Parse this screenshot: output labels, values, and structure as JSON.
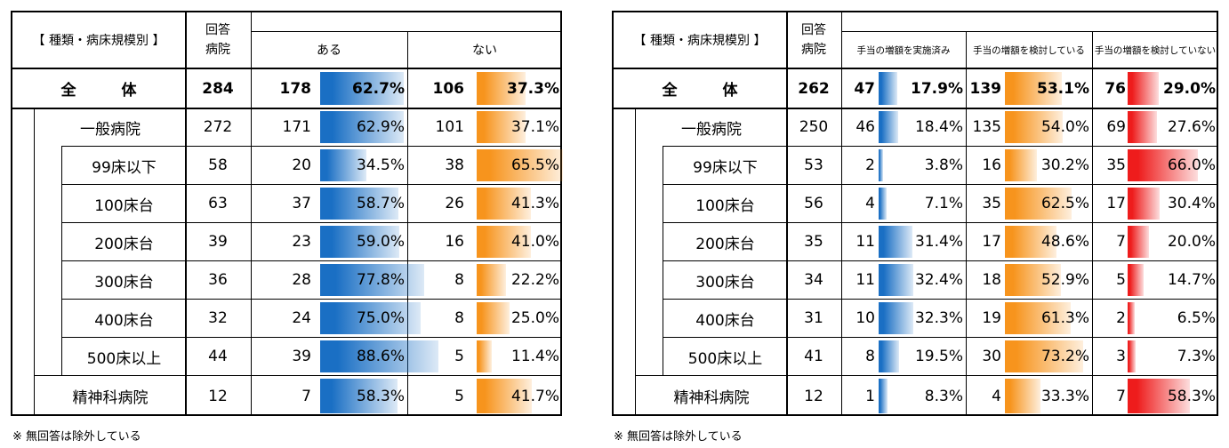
{
  "note": "※ 無回答は除外している",
  "colors": {
    "blue": "#1a6fc4",
    "orange": "#f7941d",
    "red": "#ee1c1c"
  },
  "tables": [
    {
      "category_header": "【 種類・病床規模別 】",
      "resp_header": [
        "回答",
        "病院"
      ],
      "col_headers": [
        "ある",
        "ない"
      ],
      "rows": [
        {
          "label": "全　　　体",
          "n": "284",
          "cols": [
            {
              "count": "178",
              "pct": 62.7,
              "text": "62.7%"
            },
            {
              "count": "106",
              "pct": 37.3,
              "text": "37.3%"
            }
          ]
        },
        {
          "label": "一般病院",
          "n": "272",
          "cols": [
            {
              "count": "171",
              "pct": 62.9,
              "text": "62.9%"
            },
            {
              "count": "101",
              "pct": 37.1,
              "text": "37.1%"
            }
          ]
        },
        {
          "label": "99床以下",
          "n": "58",
          "cols": [
            {
              "count": "20",
              "pct": 34.5,
              "text": "34.5%"
            },
            {
              "count": "38",
              "pct": 65.5,
              "text": "65.5%"
            }
          ]
        },
        {
          "label": "100床台",
          "n": "63",
          "cols": [
            {
              "count": "37",
              "pct": 58.7,
              "text": "58.7%"
            },
            {
              "count": "26",
              "pct": 41.3,
              "text": "41.3%"
            }
          ]
        },
        {
          "label": "200床台",
          "n": "39",
          "cols": [
            {
              "count": "23",
              "pct": 59.0,
              "text": "59.0%"
            },
            {
              "count": "16",
              "pct": 41.0,
              "text": "41.0%"
            }
          ]
        },
        {
          "label": "300床台",
          "n": "36",
          "cols": [
            {
              "count": "28",
              "pct": 77.8,
              "text": "77.8%"
            },
            {
              "count": "8",
              "pct": 22.2,
              "text": "22.2%"
            }
          ]
        },
        {
          "label": "400床台",
          "n": "32",
          "cols": [
            {
              "count": "24",
              "pct": 75.0,
              "text": "75.0%"
            },
            {
              "count": "8",
              "pct": 25.0,
              "text": "25.0%"
            }
          ]
        },
        {
          "label": "500床以上",
          "n": "44",
          "cols": [
            {
              "count": "39",
              "pct": 88.6,
              "text": "88.6%"
            },
            {
              "count": "5",
              "pct": 11.4,
              "text": "11.4%"
            }
          ]
        },
        {
          "label": "精神科病院",
          "n": "12",
          "cols": [
            {
              "count": "7",
              "pct": 58.3,
              "text": "58.3%"
            },
            {
              "count": "5",
              "pct": 41.7,
              "text": "41.7%"
            }
          ]
        }
      ]
    },
    {
      "category_header": "【 種類・病床規模別 】",
      "resp_header": [
        "回答",
        "病院"
      ],
      "col_headers": [
        "手当の増額を実施済み",
        "手当の増額を検討している",
        "手当の増額を検討していない"
      ],
      "rows": [
        {
          "label": "全　　　体",
          "n": "262",
          "cols": [
            {
              "count": "47",
              "pct": 17.9,
              "text": "17.9%"
            },
            {
              "count": "139",
              "pct": 53.1,
              "text": "53.1%"
            },
            {
              "count": "76",
              "pct": 29.0,
              "text": "29.0%"
            }
          ]
        },
        {
          "label": "一般病院",
          "n": "250",
          "cols": [
            {
              "count": "46",
              "pct": 18.4,
              "text": "18.4%"
            },
            {
              "count": "135",
              "pct": 54.0,
              "text": "54.0%"
            },
            {
              "count": "69",
              "pct": 27.6,
              "text": "27.6%"
            }
          ]
        },
        {
          "label": "99床以下",
          "n": "53",
          "cols": [
            {
              "count": "2",
              "pct": 3.8,
              "text": "3.8%"
            },
            {
              "count": "16",
              "pct": 30.2,
              "text": "30.2%"
            },
            {
              "count": "35",
              "pct": 66.0,
              "text": "66.0%"
            }
          ]
        },
        {
          "label": "100床台",
          "n": "56",
          "cols": [
            {
              "count": "4",
              "pct": 7.1,
              "text": "7.1%"
            },
            {
              "count": "35",
              "pct": 62.5,
              "text": "62.5%"
            },
            {
              "count": "17",
              "pct": 30.4,
              "text": "30.4%"
            }
          ]
        },
        {
          "label": "200床台",
          "n": "35",
          "cols": [
            {
              "count": "11",
              "pct": 31.4,
              "text": "31.4%"
            },
            {
              "count": "17",
              "pct": 48.6,
              "text": "48.6%"
            },
            {
              "count": "7",
              "pct": 20.0,
              "text": "20.0%"
            }
          ]
        },
        {
          "label": "300床台",
          "n": "34",
          "cols": [
            {
              "count": "11",
              "pct": 32.4,
              "text": "32.4%"
            },
            {
              "count": "18",
              "pct": 52.9,
              "text": "52.9%"
            },
            {
              "count": "5",
              "pct": 14.7,
              "text": "14.7%"
            }
          ]
        },
        {
          "label": "400床台",
          "n": "31",
          "cols": [
            {
              "count": "10",
              "pct": 32.3,
              "text": "32.3%"
            },
            {
              "count": "19",
              "pct": 61.3,
              "text": "61.3%"
            },
            {
              "count": "2",
              "pct": 6.5,
              "text": "6.5%"
            }
          ]
        },
        {
          "label": "500床以上",
          "n": "41",
          "cols": [
            {
              "count": "8",
              "pct": 19.5,
              "text": "19.5%"
            },
            {
              "count": "30",
              "pct": 73.2,
              "text": "73.2%"
            },
            {
              "count": "3",
              "pct": 7.3,
              "text": "7.3%"
            }
          ]
        },
        {
          "label": "精神科病院",
          "n": "12",
          "cols": [
            {
              "count": "1",
              "pct": 8.3,
              "text": "8.3%"
            },
            {
              "count": "4",
              "pct": 33.3,
              "text": "33.3%"
            },
            {
              "count": "7",
              "pct": 58.3,
              "text": "58.3%"
            }
          ]
        }
      ]
    }
  ],
  "chart_data": [
    {
      "type": "table",
      "columns": [
        "回答病院",
        "ある",
        "ない"
      ],
      "categories": [
        "全体",
        "一般病院",
        "99床以下",
        "100床台",
        "200床台",
        "300床台",
        "400床台",
        "500床以上",
        "精神科病院"
      ],
      "n": [
        284,
        272,
        58,
        63,
        39,
        36,
        32,
        44,
        12
      ],
      "series": [
        {
          "name": "ある",
          "counts": [
            178,
            171,
            20,
            37,
            23,
            28,
            24,
            39,
            7
          ],
          "values": [
            62.7,
            62.9,
            34.5,
            58.7,
            59.0,
            77.8,
            75.0,
            88.6,
            58.3
          ]
        },
        {
          "name": "ない",
          "counts": [
            106,
            101,
            38,
            26,
            16,
            8,
            8,
            5,
            5
          ],
          "values": [
            37.3,
            37.1,
            65.5,
            41.3,
            41.0,
            22.2,
            25.0,
            11.4,
            41.7
          ]
        }
      ]
    },
    {
      "type": "table",
      "columns": [
        "回答病院",
        "手当の増額を実施済み",
        "手当の増額を検討している",
        "手当の増額を検討していない"
      ],
      "categories": [
        "全体",
        "一般病院",
        "99床以下",
        "100床台",
        "200床台",
        "300床台",
        "400床台",
        "500床以上",
        "精神科病院"
      ],
      "n": [
        262,
        250,
        53,
        56,
        35,
        34,
        31,
        41,
        12
      ],
      "series": [
        {
          "name": "手当の増額を実施済み",
          "counts": [
            47,
            46,
            2,
            4,
            11,
            11,
            10,
            8,
            1
          ],
          "values": [
            17.9,
            18.4,
            3.8,
            7.1,
            31.4,
            32.4,
            32.3,
            19.5,
            8.3
          ]
        },
        {
          "name": "手当の増額を検討している",
          "counts": [
            139,
            135,
            16,
            35,
            17,
            18,
            19,
            30,
            4
          ],
          "values": [
            53.1,
            54.0,
            30.2,
            62.5,
            48.6,
            52.9,
            61.3,
            73.2,
            33.3
          ]
        },
        {
          "name": "手当の増額を検討していない",
          "counts": [
            76,
            69,
            35,
            17,
            7,
            5,
            2,
            3,
            7
          ],
          "values": [
            29.0,
            27.6,
            66.0,
            30.4,
            20.0,
            14.7,
            6.5,
            7.3,
            58.3
          ]
        }
      ]
    }
  ]
}
